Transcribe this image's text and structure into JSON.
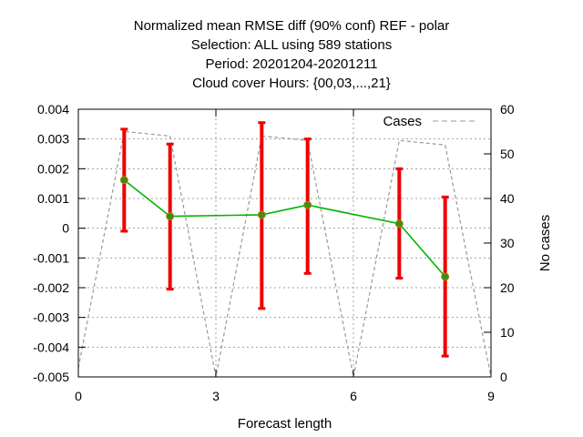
{
  "chart_data": {
    "type": "line",
    "title_lines": [
      "Normalized mean RMSE diff (90% conf) REF - polar",
      "Selection: ALL using   589 stations",
      "Period: 20201204-20201211",
      "Cloud cover   Hours: {00,03,...,21}"
    ],
    "xlabel": "Forecast length",
    "ylabel": "",
    "y2label": "No cases",
    "xlim": [
      0,
      9
    ],
    "ylim": [
      -0.005,
      0.004
    ],
    "y2lim": [
      0,
      60
    ],
    "xticks": [
      0,
      3,
      6,
      9
    ],
    "xtick_labels": [
      "0",
      "3",
      "6",
      "9"
    ],
    "yticks": [
      -0.005,
      -0.004,
      -0.003,
      -0.002,
      -0.001,
      0,
      0.001,
      0.002,
      0.003,
      0.004
    ],
    "ytick_labels": [
      "-0.005",
      "-0.004",
      "-0.003",
      "-0.002",
      "-0.001",
      "0",
      "0.001",
      "0.002",
      "0.003",
      "0.004"
    ],
    "y2ticks": [
      0,
      10,
      20,
      30,
      40,
      50,
      60
    ],
    "y2tick_labels": [
      "0",
      "10",
      "20",
      "30",
      "40",
      "50",
      "60"
    ],
    "grid": true,
    "legend": {
      "position": "top-right",
      "entries": [
        "Cases"
      ]
    },
    "series": [
      {
        "kind": "mean-with-errorbars",
        "color": "#00b400",
        "bar_color": "#ee0000",
        "x": [
          1,
          2,
          4,
          5,
          7,
          8
        ],
        "values": [
          0.00162,
          0.0004,
          0.00045,
          0.00078,
          0.00015,
          -0.00163
        ],
        "lower": [
          -0.0001,
          -0.00205,
          -0.0027,
          -0.00152,
          -0.00168,
          -0.0043
        ],
        "upper": [
          0.00333,
          0.00283,
          0.00355,
          0.003,
          0.002,
          0.00105
        ]
      },
      {
        "name": "Cases",
        "kind": "cases",
        "axis": "y2",
        "color": "#999999",
        "dash": true,
        "x": [
          0,
          1,
          2,
          3,
          4,
          5,
          6,
          7,
          8,
          9
        ],
        "values": [
          2,
          55,
          54,
          0,
          54,
          53,
          0,
          53,
          52,
          0
        ]
      }
    ]
  }
}
